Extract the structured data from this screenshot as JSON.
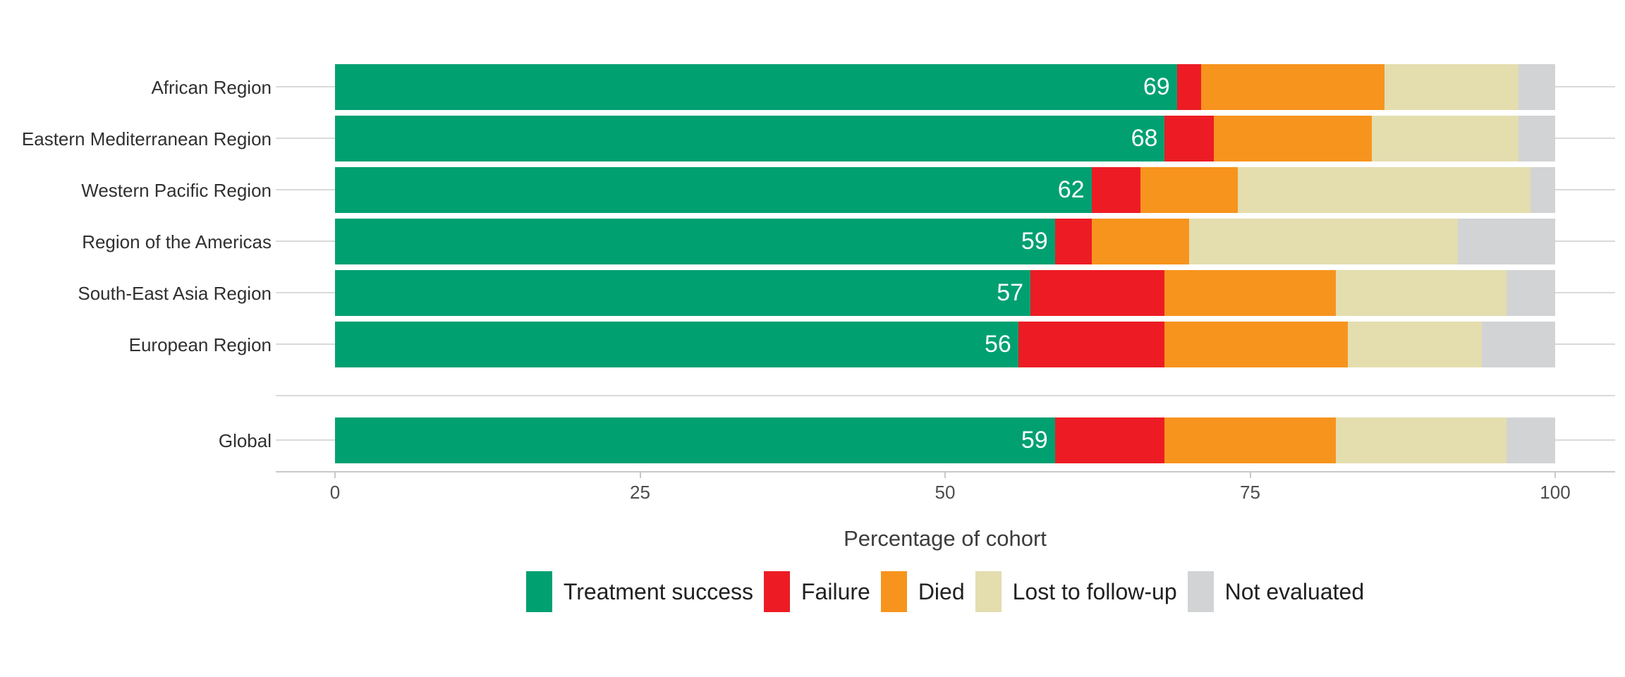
{
  "chart_data": {
    "type": "bar",
    "orientation": "horizontal",
    "stacked": true,
    "title": "",
    "xlabel": "Percentage of cohort",
    "ylabel": "",
    "xlim": [
      0,
      100
    ],
    "xticks": [
      0,
      25,
      50,
      75,
      100
    ],
    "grid": "horizontal category gridlines, light gray",
    "legend_position": "bottom",
    "gap_before_category": "Global",
    "categories": [
      "African Region",
      "Eastern Mediterranean Region",
      "Western Pacific Region",
      "Region of the Americas",
      "South-East Asia Region",
      "European Region",
      "Global"
    ],
    "series": [
      {
        "name": "Treatment success",
        "color": "#00A071",
        "values": [
          69,
          68,
          62,
          59,
          57,
          56,
          59
        ]
      },
      {
        "name": "Failure",
        "color": "#ED1C24",
        "values": [
          2,
          4,
          4,
          3,
          11,
          12,
          9
        ]
      },
      {
        "name": "Died",
        "color": "#F7941E",
        "values": [
          15,
          13,
          8,
          8,
          14,
          15,
          14
        ]
      },
      {
        "name": "Lost to follow-up",
        "color": "#E4DDAE",
        "values": [
          11,
          12,
          24,
          22,
          14,
          11,
          14
        ]
      },
      {
        "name": "Not evaluated",
        "color": "#D2D3D4",
        "values": [
          3,
          3,
          2,
          8,
          4,
          6,
          4
        ]
      }
    ],
    "bar_value_labels": [
      69,
      68,
      62,
      59,
      57,
      56,
      59
    ]
  }
}
